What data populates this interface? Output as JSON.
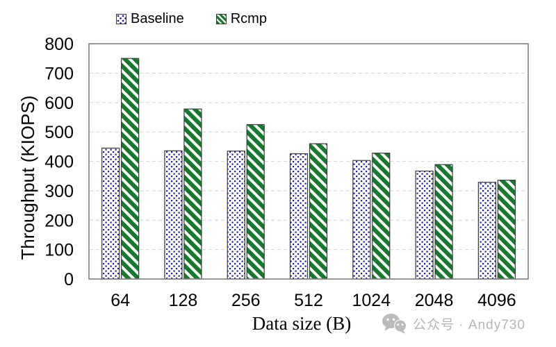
{
  "chart_data": {
    "type": "bar",
    "title": "",
    "xlabel": "Data size (B)",
    "ylabel": "Throughput (KIOPS)",
    "categories": [
      "64",
      "128",
      "256",
      "512",
      "1024",
      "2048",
      "4096"
    ],
    "series": [
      {
        "name": "Baseline",
        "pattern": "blue-dots",
        "color": "#1c1ca8",
        "values": [
          445,
          436,
          435,
          426,
          403,
          367,
          329
        ]
      },
      {
        "name": "Rcmp",
        "pattern": "green-diagonal-stripes",
        "color": "#15792e",
        "values": [
          750,
          578,
          525,
          460,
          428,
          389,
          336
        ]
      }
    ],
    "ylim": [
      0,
      800
    ],
    "yticks": [
      0,
      100,
      200,
      300,
      400,
      500,
      600,
      700,
      800
    ],
    "grid": "horizontal-dashed",
    "legend_position": "top"
  },
  "watermark": {
    "icon": "wechat-icon",
    "text": "公众号 · Andy730"
  },
  "colors": {
    "axis_frame": "#7f7f7f",
    "gridline": "#d9d9d9",
    "bar_border": "#3a3a3a",
    "text": "#000000",
    "watermark": "#b5b5b5",
    "background": "#ffffff"
  }
}
